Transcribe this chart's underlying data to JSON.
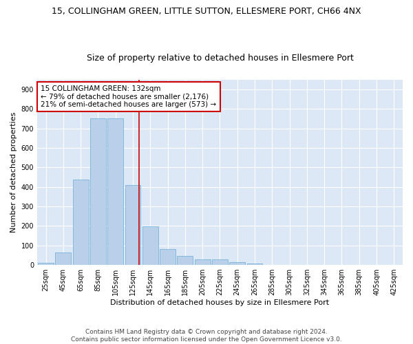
{
  "title1": "15, COLLINGHAM GREEN, LITTLE SUTTON, ELLESMERE PORT, CH66 4NX",
  "title2": "Size of property relative to detached houses in Ellesmere Port",
  "xlabel": "Distribution of detached houses by size in Ellesmere Port",
  "ylabel": "Number of detached properties",
  "categories": [
    "25sqm",
    "45sqm",
    "65sqm",
    "85sqm",
    "105sqm",
    "125sqm",
    "145sqm",
    "165sqm",
    "185sqm",
    "205sqm",
    "225sqm",
    "245sqm",
    "265sqm",
    "285sqm",
    "305sqm",
    "325sqm",
    "345sqm",
    "365sqm",
    "385sqm",
    "405sqm",
    "425sqm"
  ],
  "values": [
    10,
    63,
    437,
    750,
    750,
    408,
    197,
    80,
    45,
    28,
    28,
    13,
    8,
    2,
    0,
    0,
    0,
    0,
    0,
    0,
    2
  ],
  "bar_color": "#b8d0ea",
  "bar_edge_color": "#6aaad4",
  "vline_color": "#cc0000",
  "vline_x_index": 5.35,
  "ylim": [
    0,
    950
  ],
  "yticks": [
    0,
    100,
    200,
    300,
    400,
    500,
    600,
    700,
    800,
    900
  ],
  "bg_color": "#dce8f5",
  "grid_color": "#ffffff",
  "annotation_text_line0": "15 COLLINGHAM GREEN: 132sqm",
  "annotation_text_line1": "← 79% of detached houses are smaller (2,176)",
  "annotation_text_line2": "21% of semi-detached houses are larger (573) →",
  "annotation_box_facecolor": "#ffffff",
  "annotation_box_edgecolor": "#cc0000",
  "footnote1": "Contains HM Land Registry data © Crown copyright and database right 2024.",
  "footnote2": "Contains public sector information licensed under the Open Government Licence v3.0.",
  "title1_fontsize": 9,
  "title2_fontsize": 9,
  "axis_label_fontsize": 8,
  "tick_fontsize": 7,
  "annotation_fontsize": 7.5,
  "footnote_fontsize": 6.5
}
